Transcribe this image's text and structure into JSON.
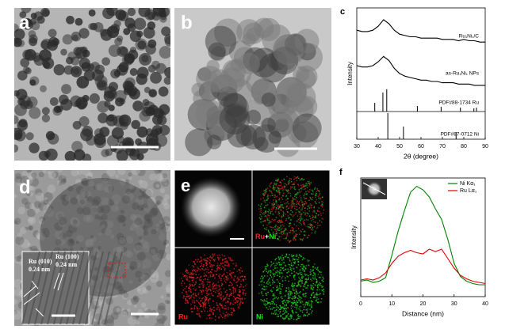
{
  "panel_labels": [
    "a",
    "b",
    "c",
    "d",
    "e",
    "f"
  ],
  "panel_d": {
    "annotations": [
      "Ru (010)",
      "0.24 nm",
      "Ru (100)",
      "0.24 nm"
    ]
  },
  "panel_e": {
    "merge": [
      "Ru",
      "+",
      "Ni"
    ],
    "ru": "Ru",
    "ni": "Ni"
  },
  "chart_data": [
    {
      "type": "line",
      "xlabel": "2θ (degree)",
      "ylabel": "Intensity",
      "xlim": [
        30,
        90
      ],
      "xticks": [
        30,
        40,
        50,
        60,
        70,
        80,
        90
      ],
      "ylim": [
        0,
        100
      ],
      "series": [
        {
          "name": "Ru₁Ni₁/C",
          "color": "#000000",
          "x": [
            30,
            32.5,
            35,
            37.5,
            40,
            42.5,
            45,
            47.5,
            50,
            52.5,
            55,
            57.5,
            60,
            62.5,
            65,
            67.5,
            70,
            72.5,
            75,
            77.5,
            80,
            82.5,
            85,
            87.5,
            90
          ],
          "values": [
            83,
            82,
            82,
            83,
            86,
            91,
            88,
            83,
            80,
            79,
            78,
            78,
            77,
            77,
            77,
            77,
            76,
            76,
            76,
            75,
            76,
            75,
            75,
            74,
            74
          ]
        },
        {
          "name": "as-Ru₁Ni₁ NPs",
          "color": "#000000",
          "x": [
            30,
            32.5,
            35,
            37.5,
            40,
            42.5,
            45,
            47.5,
            50,
            52.5,
            55,
            57.5,
            60,
            62.5,
            65,
            67.5,
            70,
            72.5,
            75,
            77.5,
            80,
            82.5,
            85,
            87.5,
            90
          ],
          "values": [
            56,
            55,
            55,
            56,
            59,
            63,
            60,
            54,
            50,
            48,
            47,
            46,
            45,
            45,
            44,
            44,
            43,
            43,
            43,
            42,
            42,
            42,
            41,
            41,
            41
          ]
        },
        {
          "name": "PDF#88-1734  Ru",
          "color": "#000000",
          "style": "sticks",
          "x": [
            38.4,
            42.2,
            44.0,
            58.3,
            69.4,
            78.4,
            84.7,
            85.9
          ],
          "values": [
            6.6,
            14.5,
            17,
            4.2,
            3.6,
            3,
            2.4,
            3
          ]
        },
        {
          "name": "PDF#87-0712  Ni",
          "color": "#000000",
          "style": "sticks",
          "x": [
            44.5,
            51.8,
            76.4
          ],
          "values": [
            19.9,
            9.6,
            5.4
          ]
        }
      ]
    },
    {
      "type": "line",
      "xlabel": "Distance (nm)",
      "ylabel": "Intensity",
      "xlim": [
        0,
        40
      ],
      "xticks": [
        0,
        10,
        20,
        30,
        40
      ],
      "ylim": [
        0,
        100
      ],
      "legend": "upper right",
      "series": [
        {
          "name": "Ni Kα₁",
          "color": "#008000",
          "x": [
            0,
            2,
            4,
            6,
            8,
            10,
            12,
            14,
            16,
            18,
            20,
            22,
            24,
            26,
            28,
            30,
            32,
            34,
            36,
            38,
            40
          ],
          "values": [
            13,
            14,
            12,
            13,
            16,
            35,
            55,
            72,
            88,
            93,
            90,
            84,
            74,
            65,
            48,
            28,
            17,
            13,
            11,
            10,
            10
          ]
        },
        {
          "name": "Ru Lα₁",
          "color": "#e00000",
          "x": [
            0,
            2,
            4,
            6,
            8,
            10,
            12,
            14,
            16,
            18,
            20,
            22,
            24,
            26,
            28,
            30,
            32,
            34,
            36,
            38,
            40
          ],
          "values": [
            14,
            15,
            14,
            16,
            20,
            28,
            34,
            37,
            39,
            37,
            36,
            40,
            38,
            40,
            32,
            24,
            18,
            15,
            13,
            12,
            11
          ]
        }
      ]
    }
  ]
}
